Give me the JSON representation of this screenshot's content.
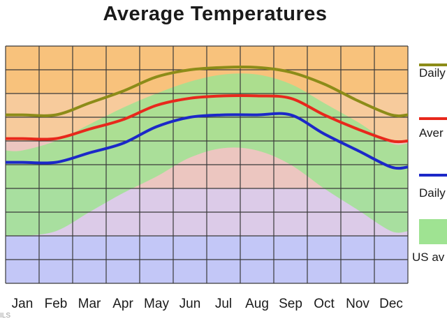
{
  "chart_data": {
    "type": "line",
    "title": "Average Temperatures",
    "categories": [
      "Jan",
      "Feb",
      "Mar",
      "Apr",
      "May",
      "Jun",
      "Jul",
      "Aug",
      "Sep",
      "Oct",
      "Nov",
      "Dec"
    ],
    "ylim": [
      0,
      100
    ],
    "grid": true,
    "legend_position": "right",
    "band": {
      "name": "US av",
      "lower": [
        20,
        22,
        30,
        38,
        45,
        53,
        57,
        56,
        50,
        40,
        31,
        22
      ],
      "upper": [
        56,
        60,
        67,
        74,
        80,
        85,
        88,
        88,
        84,
        76,
        68,
        59
      ],
      "color": "#9fe392"
    },
    "series": [
      {
        "name": "Daily",
        "color": "#8c8c18",
        "values": [
          71,
          71,
          76,
          81,
          87,
          90,
          91,
          91,
          89,
          84,
          77,
          71
        ]
      },
      {
        "name": "Aver",
        "color": "#e8281c",
        "values": [
          61,
          61,
          65,
          69,
          75,
          78,
          79,
          79,
          78,
          71,
          65,
          60
        ]
      },
      {
        "name": "Daily",
        "color": "#1c28c8",
        "values": [
          51,
          51,
          55,
          59,
          66,
          70,
          71,
          71,
          71,
          63,
          56,
          49
        ]
      }
    ],
    "background_bands": [
      {
        "from": 0,
        "to": 20,
        "color": "#c3c7f7"
      },
      {
        "from": 20,
        "to": 40,
        "color": "#dccbe8"
      },
      {
        "from": 40,
        "to": 60,
        "color": "#ecc6c0"
      },
      {
        "from": 60,
        "to": 80,
        "color": "#f7cb9c"
      },
      {
        "from": 80,
        "to": 100,
        "color": "#f8c27c"
      }
    ]
  },
  "watermark": "ILS"
}
